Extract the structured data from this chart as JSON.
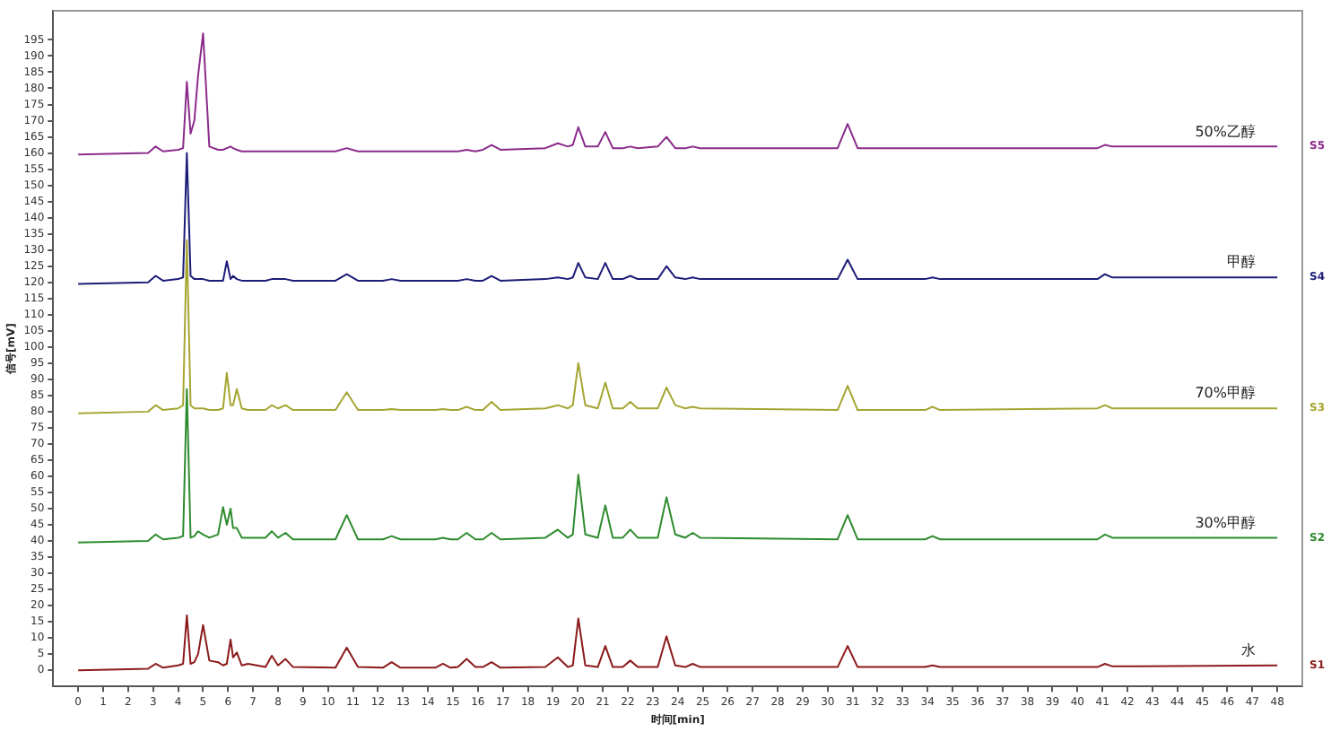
{
  "chart_data": {
    "type": "line",
    "xlabel": "时间[min]",
    "ylabel": "信号[mV]",
    "grid": false,
    "legend": false,
    "marker": "none",
    "line_style": "solid",
    "xlim": [
      -1,
      49
    ],
    "ylim": [
      -5,
      204
    ],
    "xticks": [
      0,
      1,
      2,
      3,
      4,
      5,
      6,
      7,
      8,
      9,
      10,
      11,
      12,
      13,
      14,
      15,
      16,
      17,
      18,
      19,
      20,
      21,
      22,
      23,
      24,
      25,
      26,
      27,
      28,
      29,
      30,
      31,
      32,
      33,
      34,
      35,
      36,
      37,
      38,
      39,
      40,
      41,
      42,
      43,
      44,
      45,
      46,
      47,
      48
    ],
    "yticks": [
      0,
      5,
      10,
      15,
      20,
      25,
      30,
      35,
      40,
      45,
      50,
      55,
      60,
      65,
      70,
      75,
      80,
      85,
      90,
      95,
      100,
      105,
      110,
      115,
      120,
      125,
      130,
      135,
      140,
      145,
      150,
      155,
      160,
      165,
      170,
      175,
      180,
      185,
      190,
      195
    ],
    "x": [
      0,
      2.8,
      3.1,
      3.4,
      4.0,
      4.2,
      4.35,
      4.5,
      4.65,
      4.8,
      5.0,
      5.25,
      5.6,
      5.8,
      5.95,
      6.1,
      6.2,
      6.35,
      6.55,
      6.8,
      7.5,
      7.75,
      8.0,
      8.3,
      8.6,
      10.3,
      10.75,
      11.2,
      12.2,
      12.55,
      12.9,
      14.3,
      14.6,
      14.9,
      15.2,
      15.55,
      15.9,
      16.2,
      16.55,
      16.9,
      18.7,
      19.2,
      19.6,
      19.8,
      20.02,
      20.3,
      20.8,
      21.1,
      21.4,
      21.8,
      22.1,
      22.4,
      23.2,
      23.55,
      23.9,
      24.3,
      24.6,
      24.9,
      30.4,
      30.8,
      31.2,
      33.9,
      34.2,
      34.5,
      40.8,
      41.1,
      41.4,
      48
    ],
    "series": [
      {
        "name": "S1",
        "color": "#8b1a1a",
        "values": [
          0,
          0.5,
          2,
          0.8,
          1.5,
          2,
          17,
          2,
          2.5,
          5,
          14,
          3,
          2.5,
          1.5,
          2,
          9.5,
          4,
          5.5,
          1.5,
          2,
          1,
          4.5,
          1.5,
          3.5,
          1,
          0.8,
          7,
          1,
          0.8,
          2.5,
          0.8,
          0.8,
          2,
          0.8,
          1,
          3.5,
          1,
          1,
          2.5,
          0.8,
          1,
          4,
          1,
          1.5,
          16,
          1.5,
          1,
          7.5,
          1,
          1,
          3,
          1,
          1,
          10.5,
          1.5,
          1,
          2,
          1,
          1,
          7.5,
          1,
          1,
          1.5,
          1,
          1,
          2,
          1.2,
          1.5
        ]
      },
      {
        "name": "S2",
        "color": "#2e8b2e",
        "values": [
          39.5,
          40,
          42,
          40.5,
          41,
          41.5,
          87,
          41,
          41.5,
          43,
          42,
          41,
          42,
          50.5,
          45,
          50,
          44,
          44,
          41,
          41,
          41,
          43,
          41,
          42.5,
          40.5,
          40.5,
          48,
          40.5,
          40.5,
          41.5,
          40.5,
          40.5,
          41,
          40.5,
          40.5,
          42.5,
          40.5,
          40.5,
          42.5,
          40.5,
          41,
          43.5,
          41,
          42,
          60.5,
          42,
          41,
          51,
          41,
          41,
          43.5,
          41,
          41,
          53.5,
          42,
          41,
          42.5,
          41,
          40.5,
          48,
          40.5,
          40.5,
          41.5,
          40.5,
          40.5,
          42,
          41,
          41
        ]
      },
      {
        "name": "S3",
        "color": "#a5a532",
        "values": [
          79.5,
          80,
          82,
          80.5,
          81,
          82,
          133,
          82,
          81,
          81,
          81,
          80.5,
          80.5,
          81,
          92,
          82,
          82,
          87,
          81,
          80.5,
          80.5,
          82,
          81,
          82,
          80.5,
          80.5,
          86,
          80.5,
          80.5,
          80.8,
          80.5,
          80.5,
          80.8,
          80.5,
          80.5,
          81.5,
          80.5,
          80.5,
          83,
          80.5,
          81,
          82,
          81,
          82,
          95,
          82,
          81,
          89,
          81,
          81,
          83,
          81,
          81,
          87.5,
          82,
          81,
          81.5,
          81,
          80.5,
          88,
          80.5,
          80.5,
          81.5,
          80.5,
          81,
          82,
          81,
          81
        ]
      },
      {
        "name": "S4",
        "color": "#1c1c78",
        "values": [
          119.5,
          120,
          122,
          120.5,
          121,
          121.5,
          160,
          122,
          121,
          121,
          121,
          120.5,
          120.5,
          120.5,
          126.5,
          121,
          122,
          121,
          120.5,
          120.5,
          120.5,
          121,
          121,
          121,
          120.5,
          120.5,
          122.5,
          120.5,
          120.5,
          121,
          120.5,
          120.5,
          120.5,
          120.5,
          120.5,
          121,
          120.5,
          120.5,
          122,
          120.5,
          121,
          121.5,
          121,
          121.5,
          126,
          121.5,
          121,
          126,
          121,
          121,
          122,
          121,
          121,
          125,
          121.5,
          121,
          121.5,
          121,
          121,
          127,
          121,
          121,
          121.5,
          121,
          121,
          122.5,
          121.5,
          121.5
        ]
      },
      {
        "name": "S5",
        "color": "#8b2b8b",
        "values": [
          159.5,
          160,
          162,
          160.5,
          161,
          161.5,
          182,
          166,
          170,
          184,
          197,
          162,
          161,
          161,
          161.5,
          162,
          161.5,
          161,
          160.5,
          160.5,
          160.5,
          160.5,
          160.5,
          160.5,
          160.5,
          160.5,
          161.5,
          160.5,
          160.5,
          160.5,
          160.5,
          160.5,
          160.5,
          160.5,
          160.5,
          161,
          160.5,
          161,
          162.5,
          161,
          161.5,
          163,
          162,
          162.5,
          168,
          162,
          162,
          166.5,
          161.5,
          161.5,
          162,
          161.5,
          162,
          165,
          161.5,
          161.5,
          162,
          161.5,
          161.5,
          169,
          161.5,
          161.5,
          161.5,
          161.5,
          161.5,
          162.5,
          162,
          162
        ]
      }
    ],
    "annotations": [
      "50%乙醇",
      "甲醇",
      "70%甲醇",
      "30%甲醇",
      "水"
    ]
  }
}
